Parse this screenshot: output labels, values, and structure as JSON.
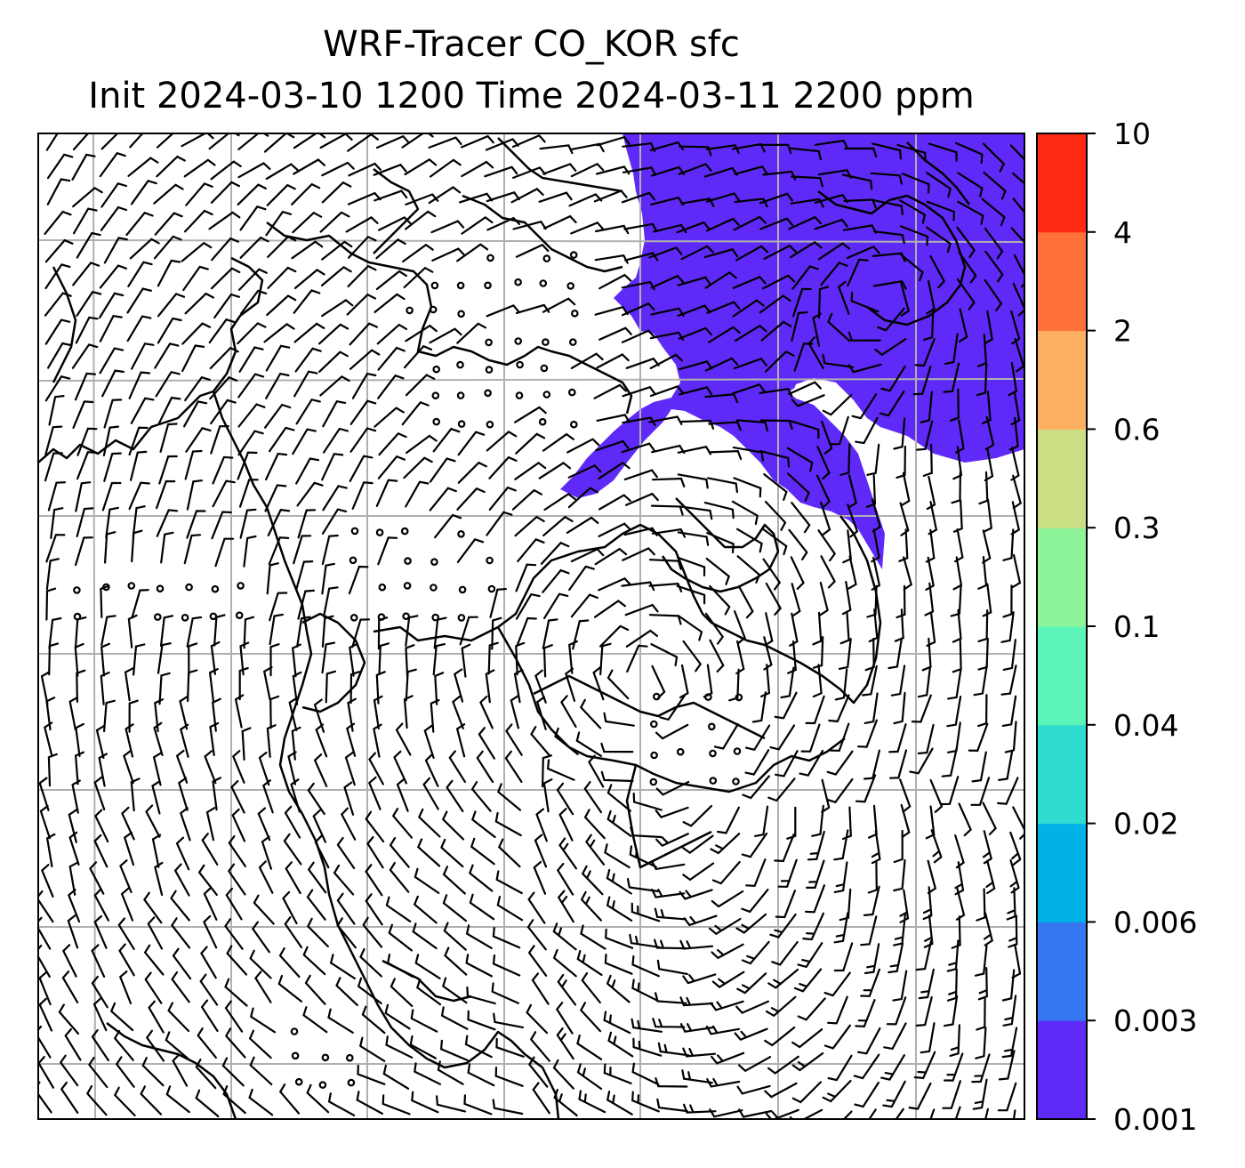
{
  "title": {
    "line1": "WRF-Tracer CO_KOR sfc",
    "line2": "Init 2024-03-10 1200 Time 2024-03-11 2200 ppm"
  },
  "map": {
    "fill_level": "0.001-0.003 ppm",
    "fill_color": "#5f2af8",
    "barb_color": "#000000",
    "gridline_color": "#b0b0b0"
  },
  "colorbar": {
    "labels": [
      "0.001",
      "0.003",
      "0.006",
      "0.02",
      "0.04",
      "0.1",
      "0.3",
      "0.6",
      "2",
      "4",
      "10"
    ],
    "colors": [
      "#5f2af8",
      "#3477f0",
      "#00b2e8",
      "#2fdcd0",
      "#5cf4b8",
      "#8df49a",
      "#cadf84",
      "#fdb062",
      "#ff7139",
      "#ff2a14"
    ]
  }
}
